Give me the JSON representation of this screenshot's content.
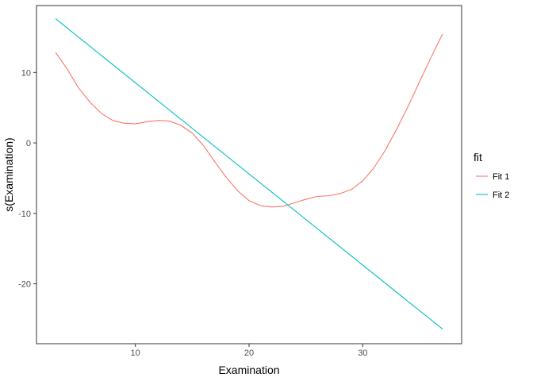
{
  "chart_data": {
    "type": "line",
    "xlabel": "Examination",
    "ylabel": "s(Examination)",
    "xlim": [
      1.3,
      38.7
    ],
    "ylim": [
      -28.5,
      19.5
    ],
    "xticks": [
      10,
      20,
      30
    ],
    "yticks": [
      -20,
      -10,
      0,
      10
    ],
    "grid": false,
    "legend": {
      "title": "fit",
      "position": "right"
    },
    "series": [
      {
        "name": "Fit 1",
        "color": "#F8766D",
        "x": [
          3,
          4,
          5,
          6,
          7,
          8,
          9,
          10,
          11,
          12,
          13,
          14,
          15,
          16,
          17,
          18,
          19,
          20,
          21,
          22,
          23,
          24,
          25,
          26,
          27,
          28,
          29,
          30,
          31,
          32,
          33,
          34,
          35,
          36,
          37
        ],
        "y": [
          12.8,
          10.5,
          7.8,
          5.8,
          4.2,
          3.2,
          2.8,
          2.7,
          3.0,
          3.2,
          3.1,
          2.5,
          1.4,
          -0.4,
          -2.7,
          -4.9,
          -6.8,
          -8.2,
          -8.9,
          -9.1,
          -9.0,
          -8.5,
          -8.0,
          -7.6,
          -7.5,
          -7.2,
          -6.6,
          -5.4,
          -3.5,
          -1.0,
          2.0,
          5.2,
          8.7,
          12.1,
          15.4
        ]
      },
      {
        "name": "Fit 2",
        "color": "#00BFC4",
        "x": [
          3,
          37
        ],
        "y": [
          17.6,
          -26.4
        ]
      }
    ]
  }
}
